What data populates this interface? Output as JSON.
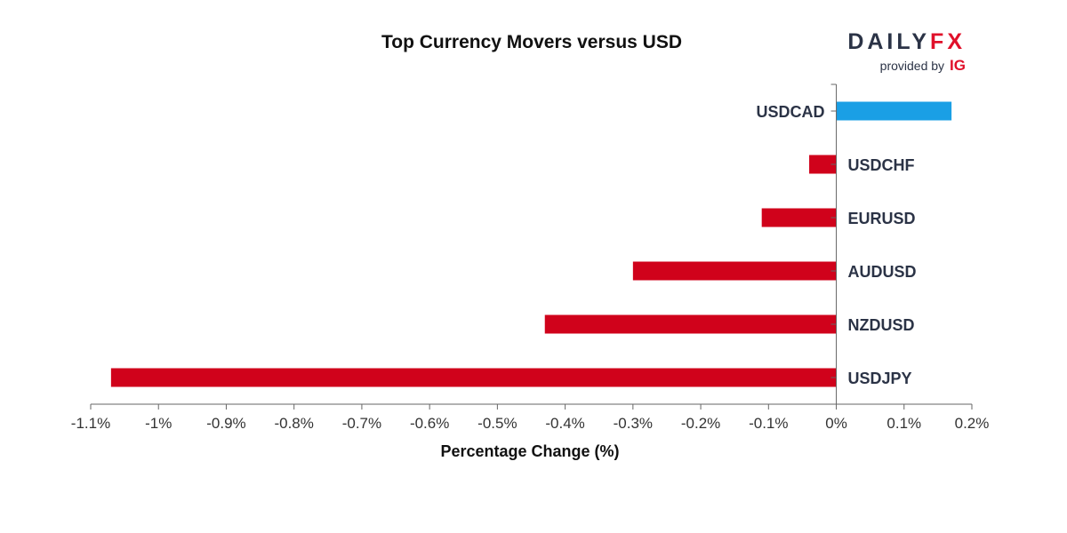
{
  "branding": {
    "logo_main": "DAILY",
    "logo_fx": "FX",
    "provided_by": "provided by",
    "ig": "IG"
  },
  "colors": {
    "positive": "#1a9fe5",
    "negative": "#d0021b",
    "axis": "#666666"
  },
  "chart_data": {
    "type": "bar",
    "orientation": "horizontal",
    "title": "Top Currency Movers versus USD",
    "xlabel": "Percentage Change (%)",
    "ylabel": "",
    "xlim": [
      -1.1,
      0.2
    ],
    "x_ticks": [
      -1.1,
      -1.0,
      -0.9,
      -0.8,
      -0.7,
      -0.6,
      -0.5,
      -0.4,
      -0.3,
      -0.2,
      -0.1,
      0,
      0.1,
      0.2
    ],
    "x_tick_labels": [
      "-1.1%",
      "-1%",
      "-0.9%",
      "-0.8%",
      "-0.7%",
      "-0.6%",
      "-0.5%",
      "-0.4%",
      "-0.3%",
      "-0.2%",
      "-0.1%",
      "0%",
      "0.1%",
      "0.2%"
    ],
    "categories": [
      "USDCAD",
      "USDCHF",
      "EURUSD",
      "AUDUSD",
      "NZDUSD",
      "USDJPY"
    ],
    "values": [
      0.17,
      -0.04,
      -0.11,
      -0.3,
      -0.43,
      -1.07
    ],
    "grid": false,
    "legend": "none"
  }
}
